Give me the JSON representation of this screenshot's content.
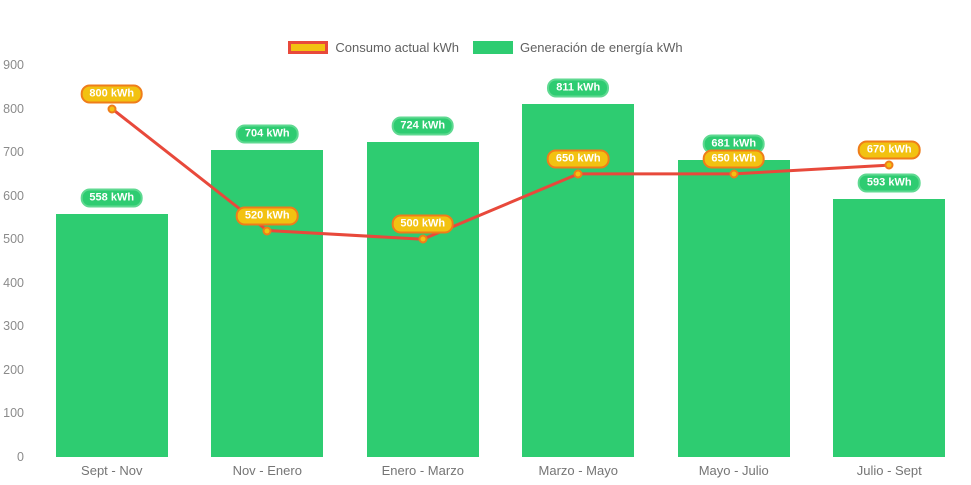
{
  "chart_data": {
    "type": "combo-bar-line",
    "categories": [
      "Sept - Nov",
      "Nov - Enero",
      "Enero - Marzo",
      "Marzo - Mayo",
      "Mayo - Julio",
      "Julio - Sept"
    ],
    "series": [
      {
        "name": "Consumo actual kWh",
        "type": "line",
        "values": [
          800,
          520,
          500,
          650,
          650,
          670
        ],
        "line_color": "#e8493b",
        "marker_fill": "#f2c211",
        "marker_border": "#ef7d1a",
        "label_bg": "#f2c211",
        "label_border": "#ef7d1a"
      },
      {
        "name": "Generación de energía kWh",
        "type": "bar",
        "values": [
          558,
          704,
          724,
          811,
          681,
          593
        ],
        "color": "#2ecc71",
        "label_bg": "#2ecc71",
        "label_border": "#5fd991"
      }
    ],
    "y_ticks": [
      0,
      100,
      200,
      300,
      400,
      500,
      600,
      700,
      800,
      900
    ],
    "ylim": [
      0,
      900
    ],
    "grid": false,
    "legend_position": "top",
    "label_suffix": " kWh"
  }
}
